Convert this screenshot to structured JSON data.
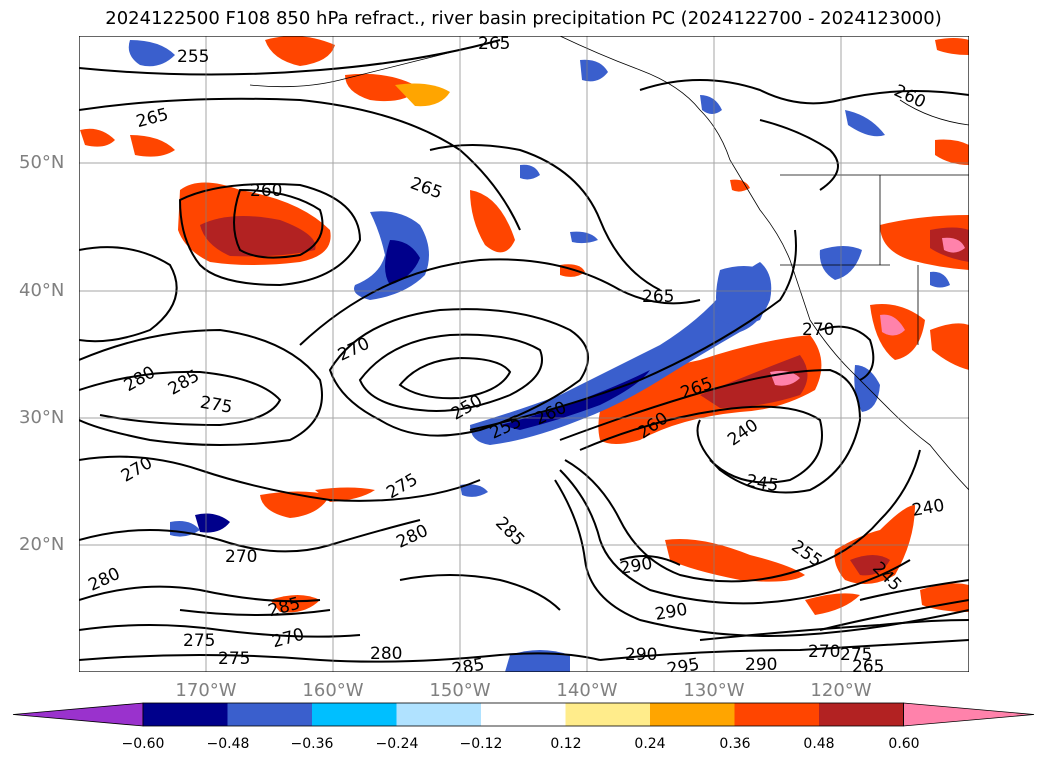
{
  "title": "2024122500 F108 850 hPa refract., river basin precipitation PC (2024122700 - 2024123000)",
  "map": {
    "lat_labels": [
      "50°N",
      "40°N",
      "30°N",
      "20°N"
    ],
    "lon_labels": [
      "170°W",
      "160°W",
      "150°W",
      "140°W",
      "130°W",
      "120°W"
    ],
    "contour_labels": [
      "255",
      "265",
      "265",
      "260",
      "265",
      "260",
      "265",
      "270",
      "270",
      "280",
      "285",
      "275",
      "270",
      "250",
      "255",
      "260",
      "265",
      "260",
      "240",
      "245",
      "240",
      "255",
      "245",
      "275",
      "280",
      "285",
      "270",
      "290",
      "290",
      "280",
      "285",
      "275",
      "270",
      "275",
      "280",
      "285",
      "290",
      "295",
      "290",
      "270",
      "275",
      "265"
    ]
  },
  "colorbar": {
    "ticks": [
      "−0.60",
      "−0.48",
      "−0.36",
      "−0.24",
      "−0.12",
      "0.12",
      "0.24",
      "0.36",
      "0.48",
      "0.60"
    ],
    "colors": [
      "#9a32cd",
      "#00008b",
      "#3a5fcd",
      "#00bfff",
      "#b0e2ff",
      "#ffffff",
      "#ffec8b",
      "#ffa500",
      "#ff4500",
      "#b22222",
      "#ff82ab"
    ]
  }
}
